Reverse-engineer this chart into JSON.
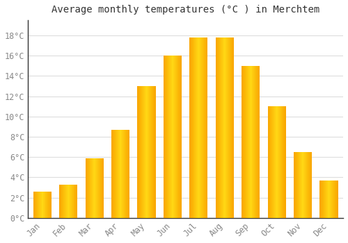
{
  "title": "Average monthly temperatures (°C ) in Merchtem",
  "months": [
    "Jan",
    "Feb",
    "Mar",
    "Apr",
    "May",
    "Jun",
    "Jul",
    "Aug",
    "Sep",
    "Oct",
    "Nov",
    "Dec"
  ],
  "values": [
    2.6,
    3.3,
    5.9,
    8.7,
    13.0,
    16.0,
    17.8,
    17.8,
    15.0,
    11.0,
    6.5,
    3.7
  ],
  "bar_color_light": "#FFD966",
  "bar_color_dark": "#F0A500",
  "background_color": "#FFFFFF",
  "grid_color": "#DDDDDD",
  "ytick_labels": [
    "0°C",
    "2°C",
    "4°C",
    "6°C",
    "8°C",
    "10°C",
    "12°C",
    "14°C",
    "16°C",
    "18°C"
  ],
  "ytick_values": [
    0,
    2,
    4,
    6,
    8,
    10,
    12,
    14,
    16,
    18
  ],
  "ylim": [
    0,
    19.5
  ],
  "title_fontsize": 10,
  "tick_fontsize": 8.5,
  "tick_color": "#888888",
  "font_family": "monospace",
  "left_spine_color": "#333333",
  "bottom_spine_color": "#333333"
}
